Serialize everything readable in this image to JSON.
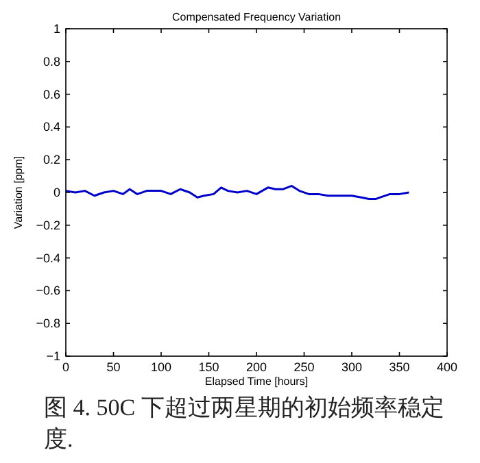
{
  "chart_data": {
    "type": "line",
    "title": "Compensated Frequency Variation",
    "xlabel": "Elapsed Time [hours]",
    "ylabel": "Variation [ppm]",
    "x": [
      0,
      10,
      20,
      30,
      40,
      50,
      60,
      67,
      75,
      85,
      100,
      110,
      120,
      130,
      138,
      145,
      155,
      163,
      170,
      180,
      190,
      200,
      212,
      220,
      228,
      237,
      245,
      255,
      265,
      275,
      285,
      295,
      300,
      310,
      318,
      325,
      330,
      340,
      350,
      360
    ],
    "series": [
      {
        "color": "#0000cc",
        "values": [
          0.01,
          0,
          0.01,
          -0.02,
          0,
          0.01,
          -0.01,
          0.02,
          -0.01,
          0.01,
          0.01,
          -0.01,
          0.02,
          0,
          -0.03,
          -0.02,
          -0.01,
          0.03,
          0.01,
          0,
          0.01,
          -0.01,
          0.03,
          0.02,
          0.02,
          0.04,
          0.01,
          -0.01,
          -0.01,
          -0.02,
          -0.02,
          -0.02,
          -0.02,
          -0.03,
          -0.04,
          -0.04,
          -0.03,
          -0.01,
          -0.01,
          0
        ]
      }
    ],
    "xlim": [
      0,
      400
    ],
    "ylim": [
      -1,
      1
    ],
    "xticks": [
      0,
      50,
      100,
      150,
      200,
      250,
      300,
      350,
      400
    ],
    "yticks": [
      {
        "value": -1,
        "label": "−1"
      },
      {
        "value": -0.8,
        "label": "−0.8"
      },
      {
        "value": -0.6,
        "label": "−0.6"
      },
      {
        "value": -0.4,
        "label": "−0.4"
      },
      {
        "value": -0.2,
        "label": "−0.2"
      },
      0,
      0.2,
      0.4,
      0.6,
      0.8,
      1
    ],
    "annotations": [
      "图 4.  50C 下超过两星期的初始频率稳定度."
    ]
  }
}
